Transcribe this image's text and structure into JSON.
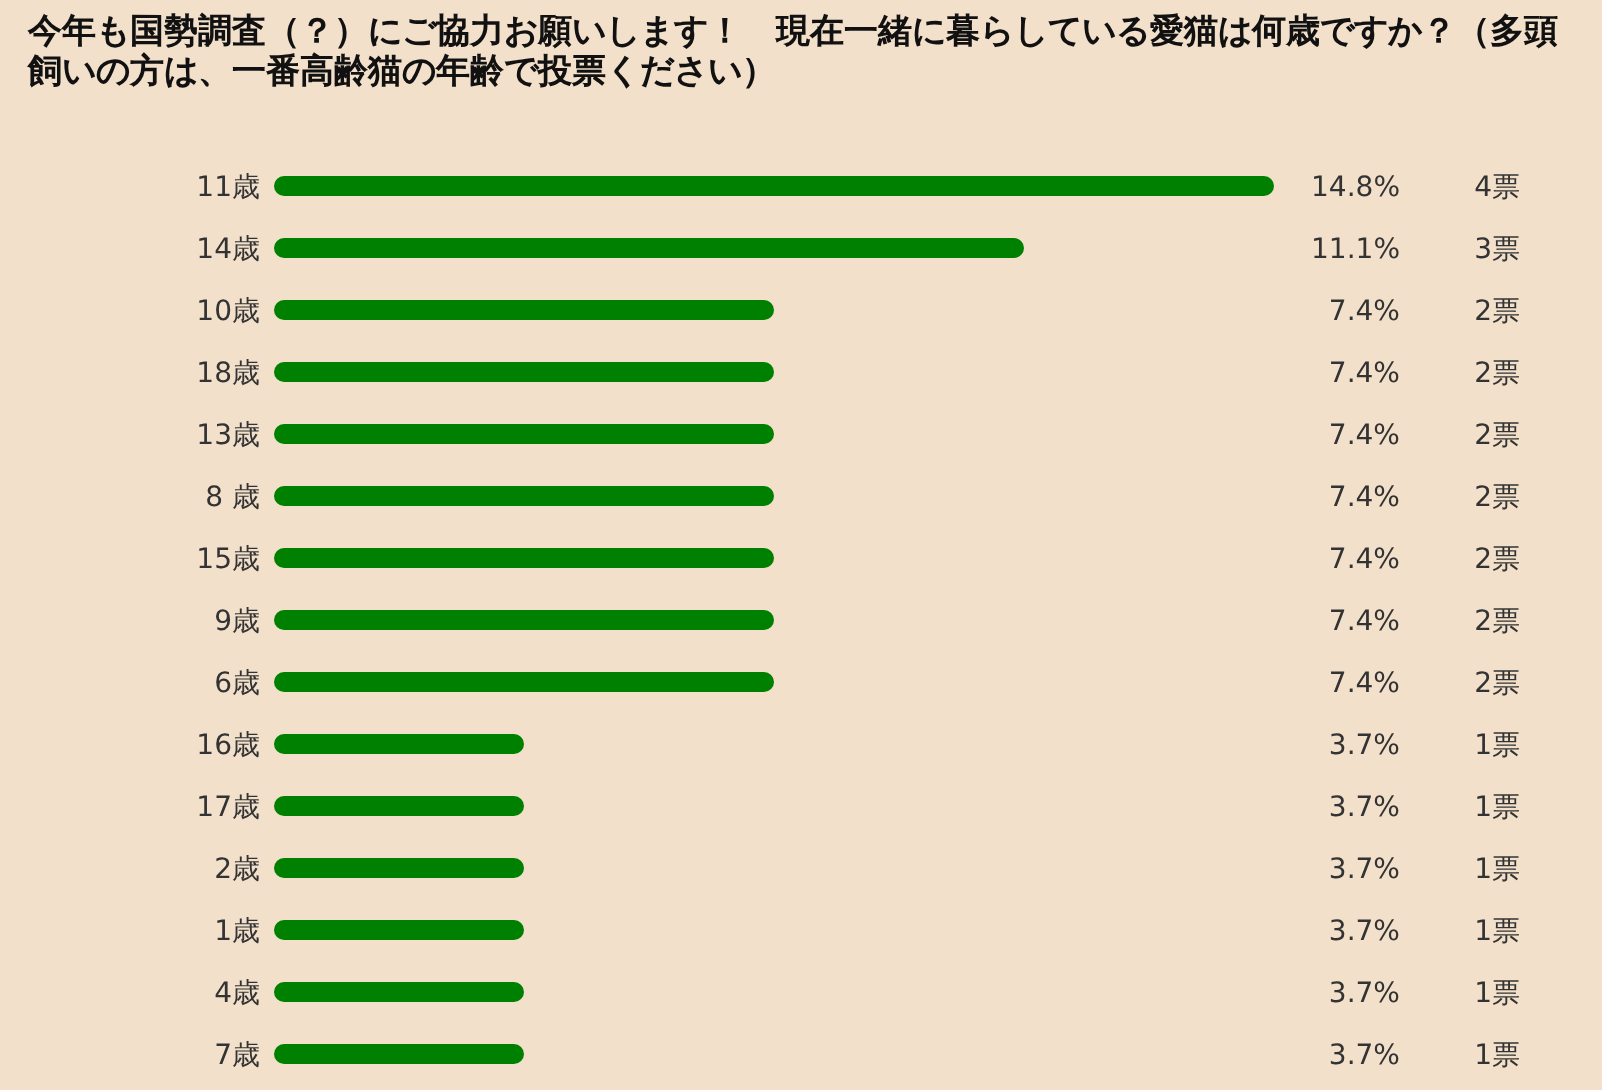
{
  "chart_data": {
    "type": "bar",
    "orientation": "horizontal",
    "title": "今年も国勢調査（？）にご協力お願いします！　現在一緒に暮らしている愛猫は何歳ですか？（多頭飼いの方は、一番高齢猫の年齢で投票ください）",
    "categories": [
      "11歳",
      "14歳",
      "10歳",
      "18歳",
      "13歳",
      "8 歳",
      "15歳",
      "9歳",
      "6歳",
      "16歳",
      "17歳",
      "2歳",
      "1歳",
      "4歳",
      "7歳"
    ],
    "values": [
      14.8,
      11.1,
      7.4,
      7.4,
      7.4,
      7.4,
      7.4,
      7.4,
      7.4,
      3.7,
      3.7,
      3.7,
      3.7,
      3.7,
      3.7
    ],
    "value_labels": [
      "14.8%",
      "11.1%",
      "7.4%",
      "7.4%",
      "7.4%",
      "7.4%",
      "7.4%",
      "7.4%",
      "7.4%",
      "3.7%",
      "3.7%",
      "3.7%",
      "3.7%",
      "3.7%",
      "3.7%"
    ],
    "color": "#008000",
    "annotations": [
      "4票",
      "3票",
      "2票",
      "2票",
      "2票",
      "2票",
      "2票",
      "2票",
      "2票",
      "1票",
      "1票",
      "1票",
      "1票",
      "1票",
      "1票"
    ]
  }
}
